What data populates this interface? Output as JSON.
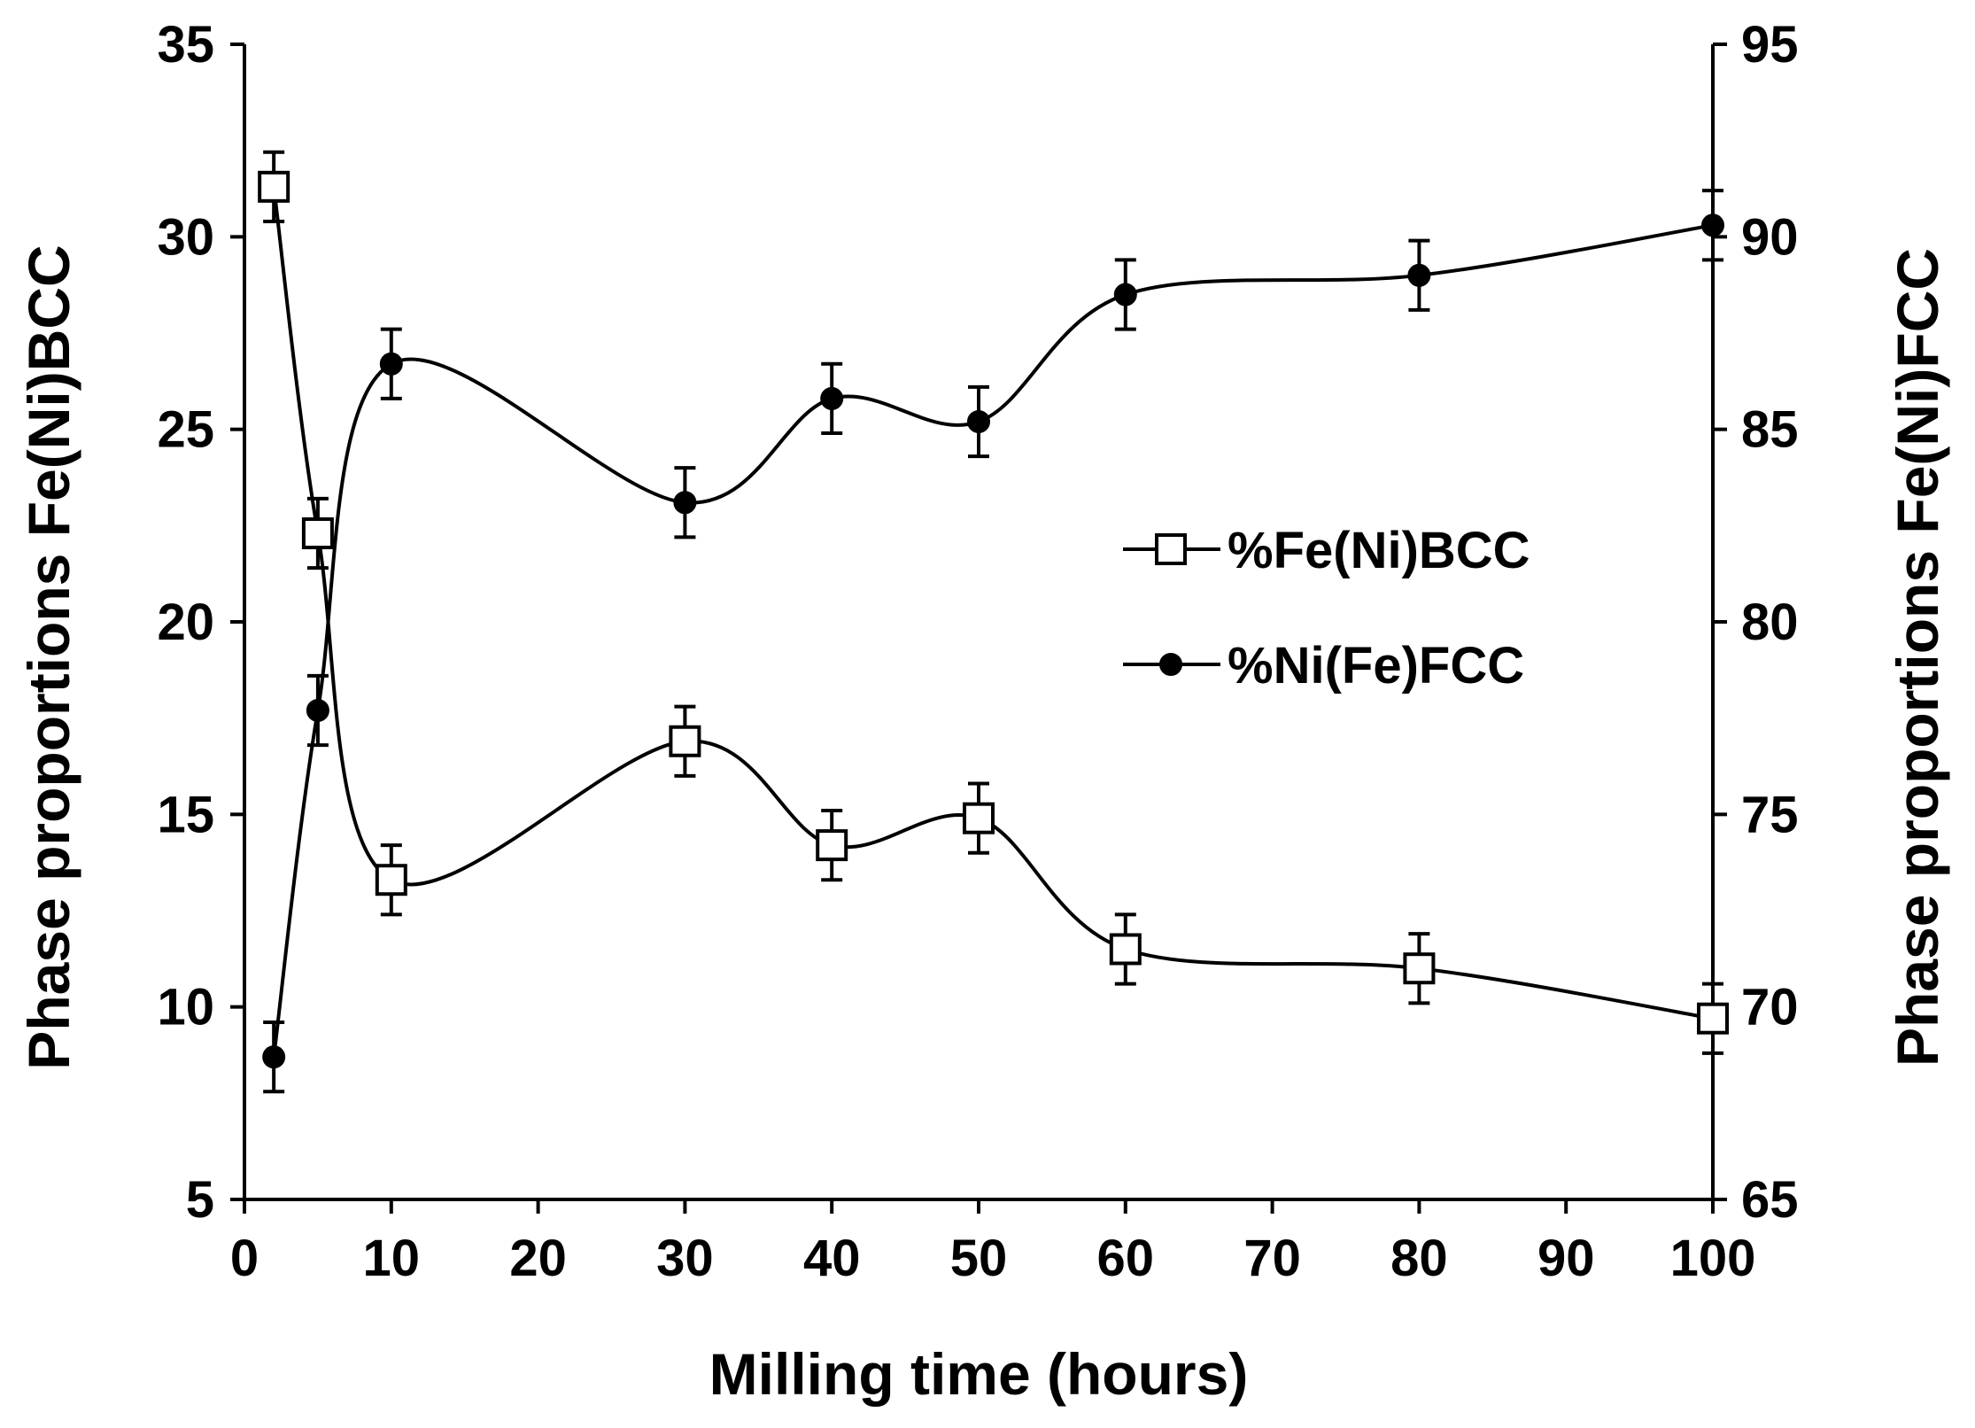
{
  "chart_data": {
    "type": "line",
    "title": "",
    "xlabel": "Milling time (hours)",
    "ylabel_left": "Phase proportions Fe(Ni)BCC",
    "ylabel_right": "Phase proportions Fe(Ni)FCC",
    "xlim": [
      0,
      100
    ],
    "ylim_left": [
      5,
      35
    ],
    "ylim_right": [
      65,
      95
    ],
    "x_ticks": [
      "0",
      "10",
      "20",
      "30",
      "40",
      "50",
      "60",
      "70",
      "80",
      "90",
      "100"
    ],
    "y_left_ticks": [
      "5",
      "10",
      "15",
      "20",
      "25",
      "30",
      "35"
    ],
    "y_right_ticks": [
      "65",
      "70",
      "75",
      "80",
      "85",
      "90",
      "95"
    ],
    "grid": false,
    "legend_position": "center-right",
    "smooth": true,
    "series": [
      {
        "name": "%Fe(Ni)BCC",
        "axis": "left",
        "marker": "open-square",
        "color": "#000000",
        "x": [
          2,
          5,
          10,
          30,
          40,
          50,
          60,
          80,
          100
        ],
        "y": [
          31.3,
          22.3,
          13.3,
          16.9,
          14.2,
          14.9,
          11.5,
          11.0,
          9.7
        ],
        "error": [
          0.9,
          0.9,
          0.9,
          0.9,
          0.9,
          0.9,
          0.9,
          0.9,
          0.9
        ]
      },
      {
        "name": "%Ni(Fe)FCC",
        "axis": "right",
        "marker": "filled-circle",
        "color": "#000000",
        "x": [
          2,
          5,
          10,
          30,
          40,
          50,
          60,
          80,
          100
        ],
        "y": [
          68.7,
          77.7,
          86.7,
          83.1,
          85.8,
          85.2,
          88.5,
          89.0,
          90.3
        ],
        "error": [
          0.9,
          0.9,
          0.9,
          0.9,
          0.9,
          0.9,
          0.9,
          0.9,
          0.9
        ]
      }
    ]
  }
}
